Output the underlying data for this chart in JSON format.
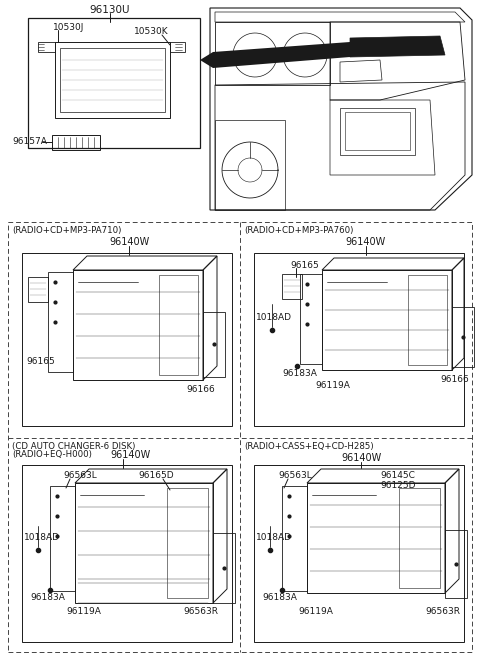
{
  "bg_color": "#ffffff",
  "line_color": "#1a1a1a",
  "dash_color": "#444444",
  "gray_color": "#888888",
  "top": {
    "label_96130U": "96130U",
    "label_10530J": "10530J",
    "label_10530K": "10530K",
    "label_96157A": "96157A"
  },
  "panels": {
    "p1_title": "(RADIO+CD+MP3-PA710)",
    "p2_title": "(RADIO+CD+MP3-PA760)",
    "p3_title1": "(CD AUTO CHANGER-6 DISK)",
    "p3_title2": "(RADIO+EQ-H000)",
    "p4_title": "(RADIO+CASS+EQ+CD-H285)",
    "part_num": "96140W"
  },
  "figsize": [
    4.8,
    6.56
  ],
  "dpi": 100
}
